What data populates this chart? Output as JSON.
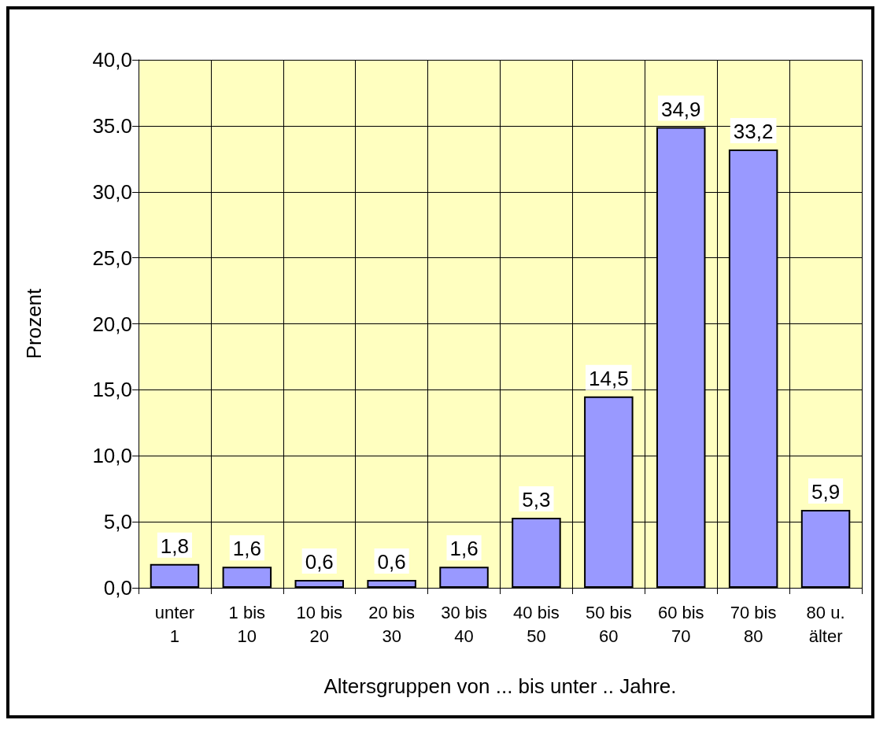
{
  "chart_data": {
    "type": "bar",
    "xlabel": "Altersgruppen von ... bis unter .. Jahre.",
    "ylabel": "Prozent",
    "categories": [
      "unter\n1",
      "1 bis\n10",
      "10 bis\n20",
      "20 bis\n30",
      "30 bis\n40",
      "40 bis\n50",
      "50 bis\n60",
      "60 bis\n70",
      "70 bis\n80",
      "80 u.\nälter"
    ],
    "values": [
      1.8,
      1.6,
      0.6,
      0.6,
      1.6,
      5.3,
      14.5,
      34.9,
      33.2,
      5.9
    ],
    "value_labels": [
      "1,8",
      "1,6",
      "0,6",
      "0,6",
      "1,6",
      "5,3",
      "14,5",
      "34,9",
      "33,2",
      "5,9"
    ],
    "color": "#9999ff",
    "ylim": [
      0,
      40
    ],
    "yticks": [
      {
        "value": 0,
        "label": "0,0"
      },
      {
        "value": 5,
        "label": "5,0"
      },
      {
        "value": 10,
        "label": "10,0"
      },
      {
        "value": 15,
        "label": "15,0"
      },
      {
        "value": 20,
        "label": "20,0"
      },
      {
        "value": 25,
        "label": "25,0"
      },
      {
        "value": 30,
        "label": "30,0"
      },
      {
        "value": 35,
        "label": "35.0"
      },
      {
        "value": 40,
        "label": "40,0"
      }
    ],
    "grid": true
  }
}
